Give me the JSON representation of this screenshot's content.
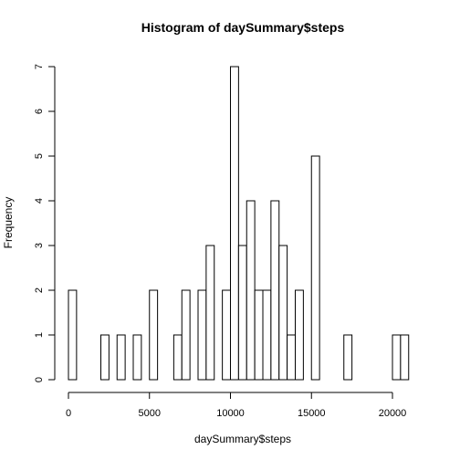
{
  "chart_data": {
    "type": "histogram",
    "title": "Histogram of daySummary$steps",
    "xlabel": "daySummary$steps",
    "ylabel": "Frequency",
    "bin_width": 500,
    "bins_start": 0,
    "counts": [
      2,
      0,
      0,
      0,
      1,
      0,
      1,
      0,
      1,
      0,
      2,
      0,
      0,
      1,
      2,
      0,
      2,
      3,
      0,
      2,
      7,
      3,
      4,
      2,
      2,
      4,
      3,
      1,
      2,
      0,
      5,
      0,
      0,
      0,
      1,
      0,
      0,
      0,
      0,
      0,
      1,
      1,
      0,
      0
    ],
    "xlim": [
      0,
      22000
    ],
    "ylim": [
      0,
      7
    ],
    "x_ticks": [
      "0",
      "5000",
      "10000",
      "15000",
      "20000"
    ],
    "y_ticks": [
      "0",
      "1",
      "2",
      "3",
      "4",
      "5",
      "6",
      "7"
    ],
    "grid": false
  }
}
